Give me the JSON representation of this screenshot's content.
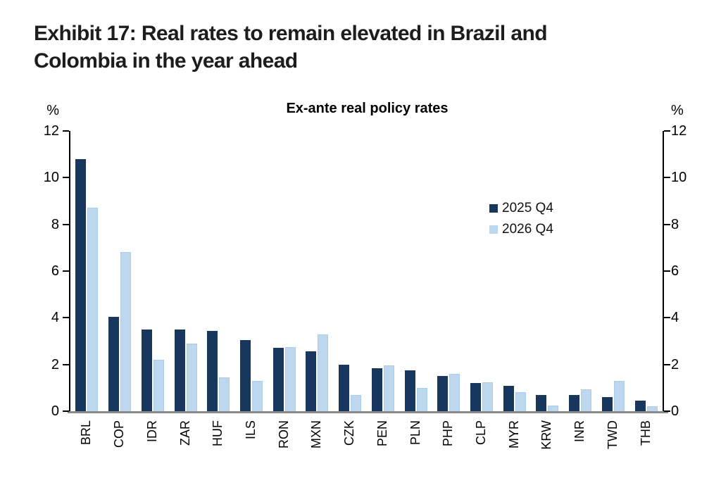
{
  "header": {
    "title_line1": "Exhibit 17: Real rates to remain elevated in Brazil and",
    "title_line2": "Colombia in the year ahead"
  },
  "chart_data": {
    "type": "bar",
    "title": "Ex-ante real policy rates",
    "unit_label_left": "%",
    "unit_label_right": "%",
    "ylim": [
      0,
      12
    ],
    "yticks": [
      0,
      2,
      4,
      6,
      8,
      10,
      12
    ],
    "grid": false,
    "legend_position": "inside-upper-right",
    "categories": [
      "BRL",
      "COP",
      "IDR",
      "ZAR",
      "HUF",
      "ILS",
      "RON",
      "MXN",
      "CZK",
      "PEN",
      "PLN",
      "PHP",
      "CLP",
      "MYR",
      "KRW",
      "INR",
      "TWD",
      "THB"
    ],
    "series": [
      {
        "name": "2025 Q4",
        "color": "#17375e",
        "values": [
          10.8,
          4.05,
          3.5,
          3.5,
          3.45,
          3.05,
          2.7,
          2.55,
          2.0,
          1.85,
          1.75,
          1.5,
          1.2,
          1.1,
          0.7,
          0.7,
          0.6,
          0.45
        ]
      },
      {
        "name": "2026 Q4",
        "color": "#bdd7ee",
        "values": [
          8.7,
          6.8,
          2.2,
          2.9,
          1.45,
          1.3,
          2.75,
          3.3,
          0.7,
          1.95,
          1.0,
          1.6,
          1.25,
          0.8,
          0.25,
          0.95,
          1.3,
          0.2
        ]
      }
    ],
    "colors": {
      "axis": "#000000",
      "baseline": "#8a8a8a",
      "text": "#000000",
      "title_text": "#1d1d1d",
      "light_bar_border": "#9cc3e6"
    }
  }
}
